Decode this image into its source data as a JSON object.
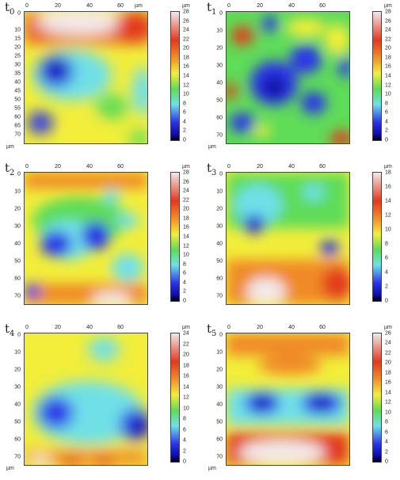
{
  "panels": [
    {
      "t": "t",
      "sub": "0",
      "max": 28,
      "ticks": [
        28,
        26,
        24,
        22,
        20,
        18,
        16,
        14,
        12,
        10,
        8,
        6,
        4,
        2,
        0
      ]
    },
    {
      "t": "t",
      "sub": "1",
      "max": 28,
      "ticks": [
        28,
        26,
        24,
        22,
        20,
        18,
        16,
        14,
        12,
        10,
        8,
        6,
        4,
        2,
        0
      ]
    },
    {
      "t": "t",
      "sub": "2",
      "max": 28,
      "ticks": [
        28,
        26,
        24,
        22,
        20,
        18,
        16,
        14,
        12,
        10,
        8,
        6,
        4,
        2,
        0
      ]
    },
    {
      "t": "t",
      "sub": "3",
      "max": 18,
      "ticks": [
        18,
        16,
        14,
        12,
        10,
        8,
        6,
        4,
        2,
        0
      ]
    },
    {
      "t": "t",
      "sub": "4",
      "max": 24,
      "ticks": [
        24,
        22,
        20,
        18,
        16,
        14,
        12,
        10,
        8,
        6,
        4,
        2,
        0
      ]
    },
    {
      "t": "t",
      "sub": "5",
      "max": 26,
      "ticks": [
        26,
        24,
        22,
        20,
        18,
        16,
        14,
        12,
        10,
        8,
        6,
        4,
        2,
        0
      ]
    }
  ],
  "x_ticks": [
    "0",
    "20",
    "40",
    "60"
  ],
  "y_ticks": [
    "0",
    "10",
    "15",
    "20",
    "25",
    "30",
    "35",
    "40",
    "45",
    "50",
    "55",
    "60",
    "65",
    "70"
  ],
  "y_ticks_short": [
    "0",
    "10",
    "20",
    "30",
    "40",
    "50",
    "60",
    "70"
  ],
  "unit": "µm",
  "colors": {
    "white": "#f4e8e8",
    "red": "#e23a1e",
    "orange": "#f08a28",
    "yellow": "#f2ee3a",
    "green": "#5fdc58",
    "cyan": "#6fe0e8",
    "blue": "#2c34e8",
    "navy": "#0a0aa0"
  }
}
